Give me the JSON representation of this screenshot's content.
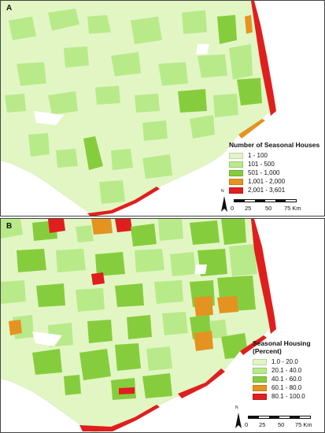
{
  "panels": [
    {
      "label": "A",
      "legend": {
        "title": "Number of Seasonal Houses",
        "items": [
          {
            "label": "1 - 100",
            "color": "#e2f6c4"
          },
          {
            "label": "101 - 500",
            "color": "#b8ea8a"
          },
          {
            "label": "501 - 1,000",
            "color": "#86cd3e"
          },
          {
            "label": "1,001 - 2,000",
            "color": "#e59320"
          },
          {
            "label": "2,001 - 3,601",
            "color": "#e01e1e"
          }
        ]
      },
      "scale": {
        "labels": [
          "0",
          "25",
          "50",
          "75 Km"
        ]
      },
      "north_label": "N"
    },
    {
      "label": "B",
      "legend": {
        "title": "Seasonal Housing (Percent)",
        "items": [
          {
            "label": "1.0 - 20.0",
            "color": "#e2f6c4"
          },
          {
            "label": "20.1 - 40.0",
            "color": "#b8ea8a"
          },
          {
            "label": "40.1 - 60.0",
            "color": "#86cd3e"
          },
          {
            "label": "60.1 - 80.0",
            "color": "#e59320"
          },
          {
            "label": "80.1 - 100.0",
            "color": "#e01e1e"
          }
        ]
      },
      "scale": {
        "labels": [
          "0",
          "25",
          "50",
          "75 Km"
        ]
      },
      "north_label": "N"
    }
  ]
}
